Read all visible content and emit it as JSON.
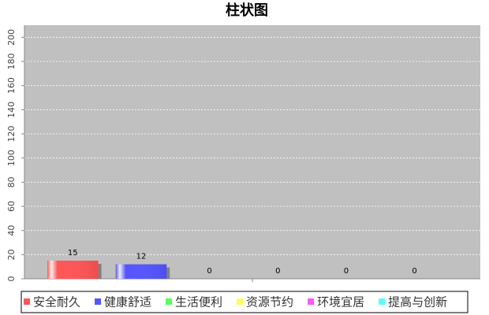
{
  "chart_data": {
    "type": "bar",
    "title": "柱状图",
    "categories": [
      null
    ],
    "series": [
      {
        "name": "安全耐久",
        "color": "#ff5555",
        "values": [
          15
        ]
      },
      {
        "name": "健康舒适",
        "color": "#5555ff",
        "values": [
          12
        ]
      },
      {
        "name": "生活便利",
        "color": "#55ff55",
        "values": [
          0
        ]
      },
      {
        "name": "资源节约",
        "color": "#ffff55",
        "values": [
          0
        ]
      },
      {
        "name": "环境宜居",
        "color": "#ff55ff",
        "values": [
          0
        ]
      },
      {
        "name": "提高与创新",
        "color": "#55ffff",
        "values": [
          0
        ]
      }
    ],
    "ylim": [
      0,
      210
    ],
    "yticks": [
      0,
      20,
      40,
      60,
      80,
      100,
      120,
      140,
      160,
      180,
      200
    ],
    "grid": true,
    "legend": "bottom"
  }
}
